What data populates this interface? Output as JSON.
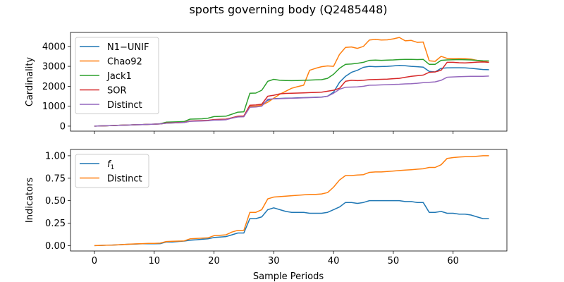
{
  "figure": {
    "title": "sports governing body (Q2485448)",
    "xlabel": "Sample Periods"
  },
  "chart_data": [
    {
      "type": "line",
      "ylabel": "Cardinality",
      "xlim": [
        -4,
        69
      ],
      "ylim": [
        -250,
        4700
      ],
      "xticks": [
        0,
        10,
        20,
        30,
        40,
        50,
        60
      ],
      "yticks": [
        0,
        1000,
        2000,
        3000,
        4000
      ],
      "legend": "top-left",
      "series": [
        {
          "name": "N1−UNIF",
          "color": "#1f77b4",
          "values": [
            0,
            10,
            20,
            30,
            40,
            50,
            60,
            70,
            80,
            90,
            100,
            110,
            150,
            160,
            170,
            180,
            250,
            260,
            270,
            280,
            320,
            330,
            340,
            420,
            490,
            500,
            980,
            980,
            1060,
            1300,
            1380,
            1390,
            1400,
            1410,
            1420,
            1430,
            1440,
            1450,
            1460,
            1500,
            1700,
            2200,
            2500,
            2700,
            2800,
            2950,
            3000,
            2980,
            2990,
            3000,
            3020,
            3050,
            3030,
            3000,
            2980,
            2960,
            2750,
            2720,
            2900,
            2920,
            2930,
            2930,
            2920,
            2900,
            2870,
            2840,
            2830
          ]
        },
        {
          "name": "Chao92",
          "color": "#ff7f0e",
          "values": [
            0,
            10,
            20,
            30,
            40,
            50,
            60,
            70,
            80,
            90,
            100,
            110,
            150,
            160,
            170,
            180,
            250,
            260,
            270,
            280,
            320,
            330,
            340,
            420,
            490,
            500,
            1000,
            1000,
            1050,
            1200,
            1400,
            1600,
            1750,
            1900,
            1980,
            2050,
            2800,
            2900,
            2980,
            3020,
            3000,
            3600,
            3950,
            3970,
            3900,
            4000,
            4320,
            4350,
            4320,
            4330,
            4380,
            4450,
            4280,
            4300,
            4200,
            4220,
            3280,
            3250,
            3500,
            3400,
            3380,
            3390,
            3380,
            3360,
            3300,
            3250,
            3200
          ]
        },
        {
          "name": "Jack1",
          "color": "#2ca02c",
          "values": [
            0,
            10,
            20,
            30,
            40,
            50,
            60,
            70,
            80,
            90,
            100,
            120,
            200,
            210,
            220,
            230,
            350,
            360,
            370,
            400,
            480,
            490,
            500,
            600,
            700,
            720,
            1650,
            1660,
            1800,
            2250,
            2350,
            2300,
            2290,
            2280,
            2290,
            2300,
            2310,
            2320,
            2330,
            2400,
            2600,
            2900,
            3100,
            3120,
            3150,
            3200,
            3300,
            3310,
            3300,
            3310,
            3320,
            3340,
            3350,
            3350,
            3340,
            3350,
            3100,
            3100,
            3300,
            3320,
            3330,
            3340,
            3330,
            3320,
            3300,
            3280,
            3270
          ]
        },
        {
          "name": "SOR",
          "color": "#d62728",
          "values": [
            0,
            10,
            20,
            30,
            40,
            50,
            60,
            70,
            80,
            90,
            100,
            110,
            160,
            170,
            180,
            190,
            260,
            270,
            280,
            290,
            330,
            340,
            350,
            420,
            500,
            510,
            1050,
            1060,
            1100,
            1500,
            1550,
            1620,
            1640,
            1650,
            1660,
            1670,
            1680,
            1690,
            1700,
            1750,
            1800,
            1900,
            2250,
            2300,
            2280,
            2300,
            2330,
            2340,
            2350,
            2360,
            2380,
            2400,
            2450,
            2500,
            2530,
            2560,
            2700,
            2720,
            2800,
            3200,
            3200,
            3180,
            3170,
            3190,
            3210,
            3220,
            3200
          ]
        },
        {
          "name": "Distinct",
          "color": "#9467bd",
          "values": [
            0,
            10,
            20,
            30,
            40,
            50,
            60,
            70,
            80,
            90,
            100,
            110,
            150,
            160,
            170,
            180,
            240,
            250,
            260,
            270,
            300,
            310,
            320,
            400,
            460,
            470,
            950,
            960,
            1000,
            1350,
            1370,
            1380,
            1390,
            1400,
            1410,
            1420,
            1430,
            1440,
            1450,
            1500,
            1650,
            1850,
            1950,
            1960,
            1970,
            2000,
            2050,
            2060,
            2070,
            2080,
            2090,
            2100,
            2120,
            2130,
            2150,
            2180,
            2200,
            2220,
            2300,
            2450,
            2470,
            2480,
            2490,
            2500,
            2500,
            2500,
            2510
          ]
        }
      ]
    },
    {
      "type": "line",
      "ylabel": "Indicators",
      "xlim": [
        -4,
        69
      ],
      "ylim": [
        -0.06,
        1.07
      ],
      "xticks": [
        0,
        10,
        20,
        30,
        40,
        50,
        60
      ],
      "yticks": [
        "0.00",
        "0.25",
        "0.50",
        "0.75",
        "1.00"
      ],
      "legend": "top-left",
      "series": [
        {
          "name": "f",
          "subscript": "1",
          "color": "#1f77b4",
          "values": [
            0,
            0.002,
            0.004,
            0.006,
            0.008,
            0.012,
            0.015,
            0.018,
            0.02,
            0.02,
            0.02,
            0.022,
            0.04,
            0.04,
            0.045,
            0.05,
            0.06,
            0.065,
            0.07,
            0.075,
            0.09,
            0.095,
            0.1,
            0.12,
            0.14,
            0.14,
            0.3,
            0.3,
            0.32,
            0.4,
            0.42,
            0.4,
            0.38,
            0.37,
            0.37,
            0.37,
            0.36,
            0.36,
            0.36,
            0.37,
            0.4,
            0.43,
            0.48,
            0.48,
            0.47,
            0.48,
            0.5,
            0.5,
            0.5,
            0.5,
            0.5,
            0.5,
            0.49,
            0.49,
            0.48,
            0.48,
            0.37,
            0.37,
            0.38,
            0.36,
            0.36,
            0.35,
            0.35,
            0.34,
            0.32,
            0.3,
            0.3
          ]
        },
        {
          "name": "Distinct",
          "subscript": "",
          "color": "#ff7f0e",
          "values": [
            0,
            0.002,
            0.004,
            0.006,
            0.009,
            0.012,
            0.016,
            0.019,
            0.022,
            0.024,
            0.025,
            0.027,
            0.045,
            0.048,
            0.05,
            0.052,
            0.075,
            0.08,
            0.083,
            0.086,
            0.11,
            0.115,
            0.12,
            0.15,
            0.17,
            0.17,
            0.37,
            0.37,
            0.4,
            0.52,
            0.54,
            0.545,
            0.55,
            0.555,
            0.56,
            0.565,
            0.57,
            0.57,
            0.575,
            0.59,
            0.65,
            0.73,
            0.78,
            0.78,
            0.785,
            0.79,
            0.815,
            0.82,
            0.82,
            0.825,
            0.83,
            0.835,
            0.84,
            0.845,
            0.85,
            0.855,
            0.87,
            0.87,
            0.9,
            0.97,
            0.98,
            0.985,
            0.99,
            0.99,
            0.995,
            1.0,
            1.0
          ]
        }
      ]
    }
  ]
}
